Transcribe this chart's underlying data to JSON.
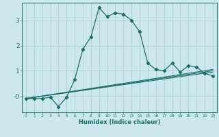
{
  "title": "",
  "xlabel": "Humidex (Indice chaleur)",
  "bg_color": "#cce8ec",
  "grid_color": "#aacfd4",
  "line_color": "#1a6e6a",
  "xlim": [
    -0.5,
    23.5
  ],
  "ylim": [
    -0.65,
    3.7
  ],
  "yticks": [
    0,
    1,
    2,
    3
  ],
  "ytick_labels": [
    "-0",
    "1",
    "2",
    "3"
  ],
  "xticks": [
    0,
    1,
    2,
    3,
    4,
    5,
    6,
    7,
    8,
    9,
    10,
    11,
    12,
    13,
    14,
    15,
    16,
    17,
    18,
    19,
    20,
    21,
    22,
    23
  ],
  "series_main": {
    "x": [
      0,
      1,
      2,
      3,
      4,
      5,
      6,
      7,
      8,
      9,
      10,
      11,
      12,
      13,
      14,
      15,
      16,
      17,
      18,
      19,
      20,
      21,
      22,
      23
    ],
    "y": [
      -0.1,
      -0.1,
      -0.1,
      -0.05,
      -0.42,
      -0.05,
      0.65,
      1.85,
      2.35,
      3.5,
      3.15,
      3.3,
      3.25,
      3.0,
      2.55,
      1.3,
      1.05,
      1.0,
      1.3,
      0.95,
      1.2,
      1.15,
      0.9,
      0.8
    ]
  },
  "series_flat": [
    {
      "x": [
        0,
        23
      ],
      "y": [
        -0.1,
        1.05
      ]
    },
    {
      "x": [
        0,
        23
      ],
      "y": [
        -0.1,
        1.0
      ]
    },
    {
      "x": [
        0,
        23
      ],
      "y": [
        -0.1,
        0.95
      ]
    }
  ]
}
